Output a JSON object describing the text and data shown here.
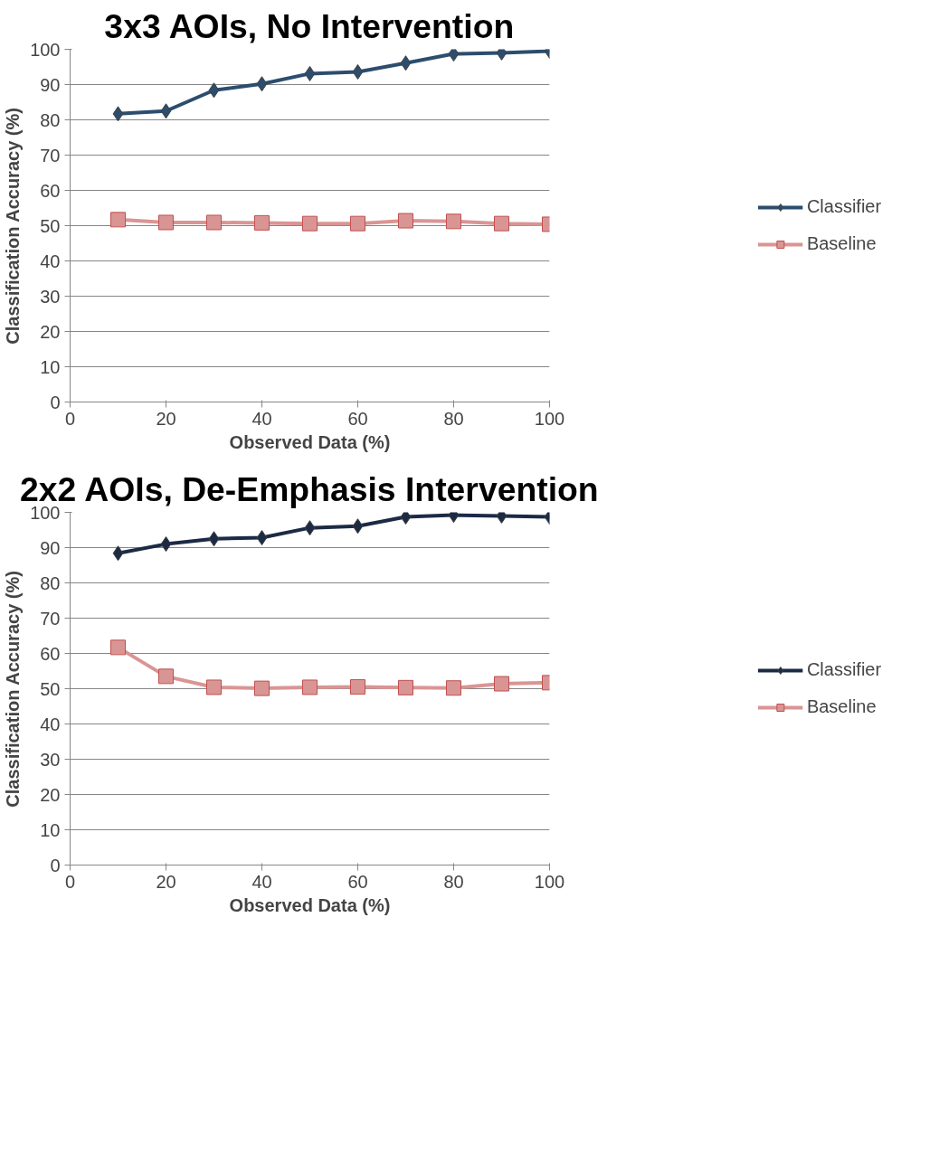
{
  "chart_data": [
    {
      "type": "line",
      "title": "3x3 AOIs, No Intervention",
      "xlabel": "Observed Data (%)",
      "ylabel": "Classification Accuracy (%)",
      "x": [
        10,
        20,
        30,
        40,
        50,
        60,
        70,
        80,
        90,
        100
      ],
      "xlim": [
        0,
        100
      ],
      "xticks": [
        0,
        20,
        40,
        60,
        80,
        100
      ],
      "ylim": [
        0,
        100
      ],
      "yticks": [
        0,
        10,
        20,
        30,
        40,
        50,
        60,
        70,
        80,
        90,
        100
      ],
      "grid": "y",
      "legend": "right",
      "series": [
        {
          "name": "Classifier",
          "color": "#2c4d6e",
          "marker": "diamond",
          "values": [
            81.7,
            82.5,
            88.4,
            90.2,
            93.1,
            93.6,
            96.1,
            98.7,
            99.0,
            99.5
          ]
        },
        {
          "name": "Baseline",
          "color": "#d99594",
          "marker": "square",
          "values": [
            51.7,
            50.9,
            50.9,
            50.8,
            50.6,
            50.6,
            51.4,
            51.2,
            50.6,
            50.4
          ]
        }
      ]
    },
    {
      "type": "line",
      "title": "2x2 AOIs, De-Emphasis Intervention",
      "xlabel": "Observed Data (%)",
      "ylabel": "Classification Accuracy (%)",
      "x": [
        10,
        20,
        30,
        40,
        50,
        60,
        70,
        80,
        90,
        100
      ],
      "xlim": [
        0,
        100
      ],
      "xticks": [
        0,
        20,
        40,
        60,
        80,
        100
      ],
      "ylim": [
        0,
        100
      ],
      "yticks": [
        0,
        10,
        20,
        30,
        40,
        50,
        60,
        70,
        80,
        90,
        100
      ],
      "grid": "y",
      "legend": "right",
      "series": [
        {
          "name": "Classifier",
          "color": "#1b2a45",
          "marker": "diamond",
          "values": [
            88.4,
            91.0,
            92.5,
            92.8,
            95.6,
            96.1,
            98.7,
            99.2,
            99.0,
            98.7
          ]
        },
        {
          "name": "Baseline",
          "color": "#d99594",
          "marker": "square",
          "values": [
            61.7,
            53.5,
            50.4,
            50.1,
            50.4,
            50.5,
            50.3,
            50.2,
            51.4,
            51.7
          ]
        }
      ]
    }
  ]
}
